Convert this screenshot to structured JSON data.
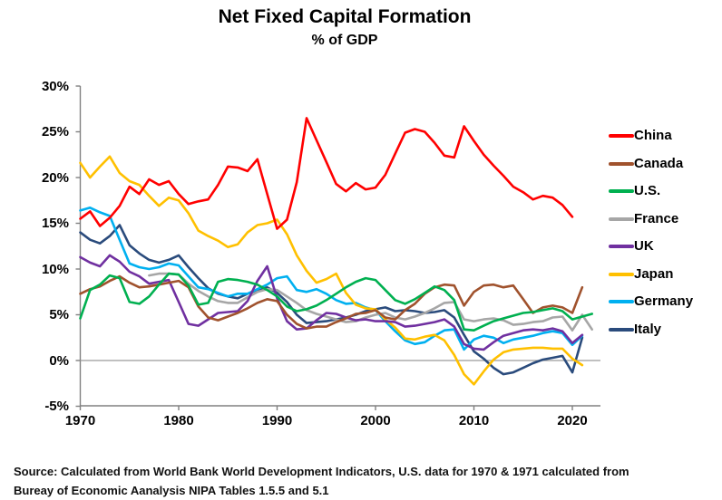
{
  "title": "Net Fixed Capital Formation",
  "subtitle": "% of GDP",
  "source": {
    "line1": "Source:  Calculated from World Bank World Development Indicators, U.S. data for 1970 & 1971 calculated from",
    "line2": "Bureay of Economic Aanalysis NIPA Tables 1.5.5 and 5.1"
  },
  "chart_data": {
    "type": "line",
    "title": "Net Fixed Capital Formation",
    "subtitle": "% of GDP",
    "xlabel": "",
    "ylabel": "",
    "grid": "zero-line-only",
    "legend_position": "right",
    "x_axis": {
      "min": 1970,
      "max": 2022,
      "ticks": [
        1970,
        1980,
        1990,
        2000,
        2010,
        2020
      ]
    },
    "y_axis": {
      "min": -5,
      "max": 30,
      "tick_labels": [
        "30%",
        "25%",
        "20%",
        "15%",
        "10%",
        "5%",
        "0%",
        "-5%"
      ],
      "tick_values": [
        30,
        25,
        20,
        15,
        10,
        5,
        0,
        -5
      ]
    },
    "axis_color": "#808080",
    "zero_line_color": "#9a9a9a",
    "series": [
      {
        "name": "China",
        "color": "#FF0000",
        "start_year": 1970,
        "values": [
          15.5,
          16.3,
          14.7,
          15.6,
          16.9,
          19.0,
          18.2,
          19.8,
          19.2,
          19.6,
          18.2,
          17.1,
          17.4,
          17.6,
          19.2,
          21.2,
          21.1,
          20.7,
          22.0,
          18.2,
          14.4,
          15.4,
          19.5,
          26.5,
          24.1,
          21.7,
          19.3,
          18.5,
          19.4,
          18.7,
          18.9,
          20.3,
          22.6,
          24.9,
          25.3,
          25.0,
          23.8,
          22.4,
          22.2,
          25.6,
          24.0,
          22.5,
          21.3,
          20.2,
          19.0,
          18.4,
          17.6,
          18.0,
          17.8,
          17.0,
          15.7
        ]
      },
      {
        "name": "Canada",
        "color": "#A0522D",
        "start_year": 1970,
        "values": [
          7.3,
          7.8,
          8.1,
          8.7,
          9.2,
          8.5,
          8.0,
          8.1,
          8.3,
          8.5,
          8.7,
          8.0,
          5.9,
          4.7,
          4.4,
          4.8,
          5.2,
          5.7,
          6.3,
          6.7,
          6.5,
          5.0,
          4.0,
          3.5,
          3.7,
          3.7,
          4.2,
          4.6,
          5.1,
          5.2,
          5.5,
          4.7,
          4.5,
          5.5,
          6.2,
          7.3,
          8.0,
          8.3,
          8.2,
          6.0,
          7.5,
          8.2,
          8.3,
          8.0,
          8.2,
          6.7,
          5.2,
          5.8,
          6.0,
          5.8,
          5.2,
          8.0
        ]
      },
      {
        "name": "U.S.",
        "color": "#00B050",
        "start_year": 1970,
        "values": [
          4.6,
          7.7,
          8.3,
          9.3,
          9.0,
          6.4,
          6.2,
          7.0,
          8.3,
          9.5,
          9.4,
          8.2,
          6.1,
          6.3,
          8.6,
          8.9,
          8.8,
          8.6,
          8.3,
          7.7,
          7.0,
          5.9,
          5.4,
          5.6,
          6.0,
          6.6,
          7.3,
          8.0,
          8.6,
          9.0,
          8.8,
          7.7,
          6.6,
          6.2,
          6.7,
          7.4,
          8.1,
          7.7,
          6.6,
          3.4,
          3.3,
          3.8,
          4.3,
          4.6,
          4.9,
          5.2,
          5.3,
          5.5,
          5.7,
          5.4,
          4.5,
          4.8,
          5.1
        ]
      },
      {
        "name": "France",
        "color": "#A6A6A6",
        "start_year": 1977,
        "values": [
          9.3,
          9.5,
          9.5,
          9.4,
          8.4,
          7.6,
          7.0,
          6.5,
          6.3,
          6.3,
          6.9,
          7.5,
          7.8,
          7.7,
          7.0,
          6.3,
          5.5,
          5.1,
          4.8,
          4.5,
          4.2,
          4.3,
          4.7,
          5.0,
          5.2,
          4.7,
          4.5,
          4.8,
          5.2,
          5.7,
          6.3,
          6.4,
          4.5,
          4.3,
          4.5,
          4.6,
          4.4,
          3.9,
          4.0,
          4.2,
          4.3,
          4.7,
          4.8,
          3.3,
          5.0,
          3.4
        ]
      },
      {
        "name": "UK",
        "color": "#7030A0",
        "start_year": 1970,
        "values": [
          11.3,
          10.7,
          10.3,
          11.5,
          10.8,
          9.7,
          9.2,
          8.4,
          8.6,
          8.8,
          6.4,
          4.0,
          3.8,
          4.5,
          5.2,
          5.3,
          5.4,
          6.5,
          8.7,
          10.3,
          6.8,
          4.3,
          3.4,
          3.5,
          4.4,
          5.2,
          5.1,
          4.7,
          4.4,
          4.5,
          4.3,
          4.3,
          4.2,
          3.7,
          3.8,
          4.0,
          4.2,
          4.5,
          3.7,
          1.8,
          1.3,
          1.2,
          2.0,
          2.7,
          3.0,
          3.3,
          3.4,
          3.3,
          3.5,
          3.2,
          1.9,
          2.8
        ]
      },
      {
        "name": "Japan",
        "color": "#FFC000",
        "start_year": 1970,
        "values": [
          21.6,
          20.0,
          21.2,
          22.3,
          20.5,
          19.6,
          19.2,
          18.0,
          16.9,
          17.8,
          17.5,
          16.1,
          14.2,
          13.6,
          13.1,
          12.4,
          12.7,
          14.0,
          14.8,
          15.0,
          15.4,
          13.8,
          11.5,
          9.8,
          8.5,
          8.9,
          9.5,
          7.4,
          6.1,
          5.7,
          5.6,
          4.5,
          3.6,
          2.4,
          2.3,
          2.6,
          2.8,
          2.2,
          0.6,
          -1.5,
          -2.6,
          -1.2,
          0.1,
          0.9,
          1.2,
          1.3,
          1.4,
          1.4,
          1.3,
          1.3,
          0.2,
          -0.5
        ]
      },
      {
        "name": "Germany",
        "color": "#00B0F0",
        "start_year": 1970,
        "values": [
          16.4,
          16.7,
          16.2,
          15.8,
          13.2,
          10.6,
          10.2,
          10.0,
          10.2,
          10.6,
          10.4,
          9.2,
          8.0,
          7.8,
          7.4,
          7.0,
          7.3,
          7.3,
          7.8,
          8.3,
          9.0,
          9.2,
          7.7,
          7.5,
          7.8,
          7.3,
          6.6,
          6.2,
          6.3,
          5.8,
          5.5,
          4.3,
          3.2,
          2.2,
          1.8,
          2.0,
          2.7,
          3.3,
          3.4,
          1.2,
          2.3,
          2.7,
          2.5,
          1.9,
          2.3,
          2.5,
          2.7,
          3.0,
          3.2,
          3.0,
          1.7,
          2.7
        ]
      },
      {
        "name": "Italy",
        "color": "#2A4B7C",
        "start_year": 1970,
        "values": [
          14.0,
          13.2,
          12.8,
          13.6,
          14.8,
          12.6,
          11.7,
          11.0,
          10.7,
          11.0,
          11.5,
          10.2,
          9.0,
          7.9,
          7.3,
          7.0,
          6.8,
          7.3,
          7.7,
          8.0,
          7.4,
          6.4,
          5.0,
          4.1,
          4.2,
          4.3,
          4.5,
          4.7,
          5.0,
          5.4,
          5.6,
          5.8,
          5.4,
          5.5,
          5.4,
          5.2,
          5.3,
          5.5,
          4.7,
          2.8,
          1.0,
          0.2,
          -0.8,
          -1.5,
          -1.3,
          -0.8,
          -0.3,
          0.1,
          0.3,
          0.5,
          -1.3,
          2.5
        ]
      }
    ]
  }
}
